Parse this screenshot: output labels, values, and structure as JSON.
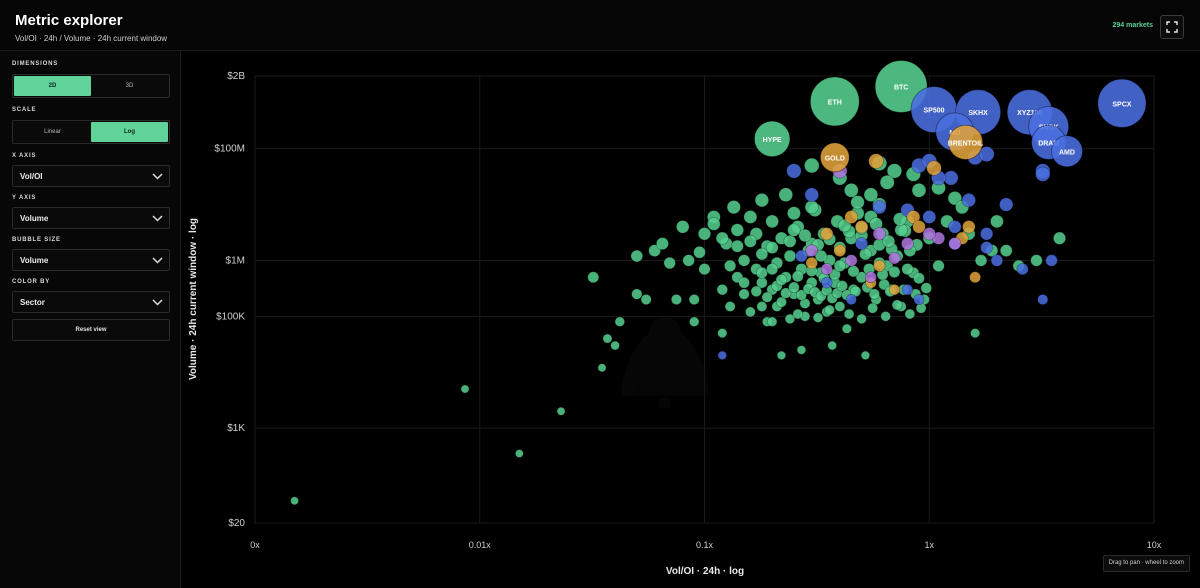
{
  "header": {
    "title": "Metric explorer",
    "subtitle": "Vol/OI · 24h / Volume · 24h current window",
    "market_count": "294 markets",
    "fullscreen_icon": "expand-icon"
  },
  "sidebar": {
    "dimensions": {
      "label": "DIMENSIONS",
      "options": [
        "2D",
        "3D"
      ],
      "selected": "2D"
    },
    "scale": {
      "label": "SCALE",
      "options": [
        "Linear",
        "Log"
      ],
      "selected": "Log"
    },
    "x_axis": {
      "label": "X AXIS",
      "value": "Vol/OI"
    },
    "y_axis": {
      "label": "Y AXIS",
      "value": "Volume"
    },
    "bubble_size": {
      "label": "BUBBLE SIZE",
      "value": "Volume"
    },
    "color_by": {
      "label": "COLOR BY",
      "value": "Sector"
    },
    "reset_label": "Reset view"
  },
  "hint": "Drag to pan · wheel to zoom",
  "colors": {
    "accent": "#5fd39a",
    "crypto": "#56d08f",
    "equity": "#4a6ee0",
    "commodity": "#e0a23a",
    "other": "#b074e0",
    "background": "#000000"
  },
  "chart_data": {
    "type": "scatter",
    "xlabel": "Vol/OI · 24h · log",
    "ylabel": "Volume · 24h current window · log",
    "x_scale": "log",
    "y_scale": "log",
    "xlim": [
      0.001,
      10
    ],
    "ylim": [
      20,
      2000000000
    ],
    "x_ticks": [
      {
        "value": 0.001,
        "label": "0x"
      },
      {
        "value": 0.01,
        "label": "0.01x"
      },
      {
        "value": 0.1,
        "label": "0.1x"
      },
      {
        "value": 1,
        "label": "1x"
      },
      {
        "value": 10,
        "label": "10x"
      }
    ],
    "y_ticks": [
      {
        "value": 20,
        "label": "$20"
      },
      {
        "value": 1000,
        "label": "$1K"
      },
      {
        "value": 100000,
        "label": "$100K"
      },
      {
        "value": 1000000,
        "label": "$1M"
      },
      {
        "value": 100000000,
        "label": "$100M"
      },
      {
        "value": 2000000000,
        "label": "$2B"
      }
    ],
    "grid": true,
    "labeled_points": [
      {
        "label": "BTC",
        "x": 0.75,
        "y": 1300000000,
        "sector": "crypto"
      },
      {
        "label": "ETH",
        "x": 0.38,
        "y": 700000000,
        "sector": "crypto"
      },
      {
        "label": "SP500",
        "x": 1.05,
        "y": 500000000,
        "sector": "equity"
      },
      {
        "label": "HYPE",
        "x": 0.2,
        "y": 150000000,
        "sector": "crypto"
      },
      {
        "label": "GOLD",
        "x": 0.38,
        "y": 70000000,
        "sector": "commodity"
      },
      {
        "label": "SKHX",
        "x": 1.65,
        "y": 450000000,
        "sector": "equity"
      },
      {
        "label": "XYZ100",
        "x": 2.8,
        "y": 450000000,
        "sector": "equity"
      },
      {
        "label": "SNDK",
        "x": 3.4,
        "y": 250000000,
        "sector": "equity"
      },
      {
        "label": "MU",
        "x": 1.3,
        "y": 200000000,
        "sector": "equity"
      },
      {
        "label": "BRENTOIL",
        "x": 1.45,
        "y": 130000000,
        "sector": "commodity"
      },
      {
        "label": "DRAM",
        "x": 3.4,
        "y": 130000000,
        "sector": "equity"
      },
      {
        "label": "AMD",
        "x": 4.1,
        "y": 90000000,
        "sector": "equity"
      },
      {
        "label": "SPCX",
        "x": 7.2,
        "y": 650000000,
        "sector": "equity"
      }
    ],
    "points": [
      [
        0.0015,
        50,
        "c"
      ],
      [
        0.0086,
        5000,
        "c"
      ],
      [
        0.015,
        350,
        "c"
      ],
      [
        0.023,
        2000,
        "c"
      ],
      [
        0.035,
        12000,
        "c"
      ],
      [
        0.037,
        40000,
        "c"
      ],
      [
        0.042,
        80000,
        "c"
      ],
      [
        0.032,
        500000,
        "c"
      ],
      [
        0.04,
        30000,
        "c"
      ],
      [
        0.05,
        250000,
        "c"
      ],
      [
        0.055,
        200000,
        "c"
      ],
      [
        0.06,
        1500000,
        "c"
      ],
      [
        0.065,
        2000000,
        "c"
      ],
      [
        0.07,
        900000,
        "c"
      ],
      [
        0.075,
        200000,
        "c"
      ],
      [
        0.05,
        1200000,
        "c"
      ],
      [
        0.08,
        4000000,
        "c"
      ],
      [
        0.085,
        1000000,
        "c"
      ],
      [
        0.09,
        80000,
        "c"
      ],
      [
        0.09,
        200000,
        "c"
      ],
      [
        0.095,
        1400000,
        "c"
      ],
      [
        0.1,
        3000000,
        "c"
      ],
      [
        0.1,
        700000,
        "c"
      ],
      [
        0.11,
        6000000,
        "c"
      ],
      [
        0.11,
        4500000,
        "c"
      ],
      [
        0.12,
        50000,
        "c"
      ],
      [
        0.12,
        300000,
        "c"
      ],
      [
        0.125,
        2000000,
        "c"
      ],
      [
        0.13,
        800000,
        "c"
      ],
      [
        0.13,
        150000,
        "c"
      ],
      [
        0.135,
        9000000,
        "c"
      ],
      [
        0.14,
        3500000,
        "c"
      ],
      [
        0.14,
        500000,
        "c"
      ],
      [
        0.15,
        1000000,
        "c"
      ],
      [
        0.15,
        250000,
        "c"
      ],
      [
        0.16,
        6000000,
        "c"
      ],
      [
        0.16,
        120000,
        "c"
      ],
      [
        0.17,
        3000000,
        "c"
      ],
      [
        0.17,
        700000,
        "c"
      ],
      [
        0.18,
        400000,
        "c"
      ],
      [
        0.18,
        12000000,
        "c"
      ],
      [
        0.19,
        80000,
        "c"
      ],
      [
        0.19,
        1800000,
        "c"
      ],
      [
        0.2,
        5000000,
        "c"
      ],
      [
        0.2,
        300000,
        "c"
      ],
      [
        0.21,
        150000,
        "c"
      ],
      [
        0.21,
        900000,
        "c"
      ],
      [
        0.22,
        2500000,
        "c"
      ],
      [
        0.22,
        20000,
        "c"
      ],
      [
        0.23,
        500000,
        "c"
      ],
      [
        0.23,
        15000000,
        "c"
      ],
      [
        0.24,
        1200000,
        "c"
      ],
      [
        0.25,
        250000,
        "c"
      ],
      [
        0.25,
        7000000,
        "c"
      ],
      [
        0.26,
        4000000,
        "c"
      ],
      [
        0.27,
        700000,
        "c"
      ],
      [
        0.27,
        25000,
        "c"
      ],
      [
        0.28,
        100000,
        "c"
      ],
      [
        0.29,
        1500000,
        "c"
      ],
      [
        0.3,
        400000,
        "c"
      ],
      [
        0.3,
        2000000,
        "c"
      ],
      [
        0.31,
        8000000,
        "c"
      ],
      [
        0.32,
        200000,
        "c"
      ],
      [
        0.33,
        600000,
        "c"
      ],
      [
        0.34,
        3000000,
        "c"
      ],
      [
        0.35,
        120000,
        "c"
      ],
      [
        0.36,
        1000000,
        "c"
      ],
      [
        0.37,
        30000,
        "c"
      ],
      [
        0.38,
        400000,
        "c"
      ],
      [
        0.39,
        5000000,
        "c"
      ],
      [
        0.4,
        150000,
        "c"
      ],
      [
        0.42,
        900000,
        "c"
      ],
      [
        0.43,
        60000,
        "c"
      ],
      [
        0.45,
        2500000,
        "c"
      ],
      [
        0.46,
        300000,
        "c"
      ],
      [
        0.48,
        7000000,
        "c"
      ],
      [
        0.5,
        500000,
        "c"
      ],
      [
        0.52,
        20000,
        "c"
      ],
      [
        0.55,
        1500000,
        "c"
      ],
      [
        0.58,
        200000,
        "c"
      ],
      [
        0.6,
        10000000,
        "c"
      ],
      [
        0.62,
        3000000,
        "c"
      ],
      [
        0.65,
        800000,
        "c"
      ],
      [
        0.68,
        300000,
        "c"
      ],
      [
        0.7,
        40000000,
        "c"
      ],
      [
        0.72,
        1200000,
        "c"
      ],
      [
        0.75,
        150000,
        "c"
      ],
      [
        0.8,
        5000000,
        "c"
      ],
      [
        0.85,
        600000,
        "c"
      ],
      [
        0.9,
        18000000,
        "c"
      ],
      [
        0.95,
        200000,
        "c"
      ],
      [
        1.0,
        2500000,
        "c"
      ],
      [
        1.1,
        800000,
        "c"
      ],
      [
        1.2,
        5000000,
        "c"
      ],
      [
        1.3,
        13000000,
        "c"
      ],
      [
        1.5,
        3000000,
        "c"
      ],
      [
        1.7,
        1000000,
        "c"
      ],
      [
        2.0,
        5000000,
        "c"
      ],
      [
        2.2,
        1500000,
        "c"
      ],
      [
        2.5,
        800000,
        "c"
      ],
      [
        3.0,
        1000000,
        "c"
      ],
      [
        3.8,
        2500000,
        "c"
      ],
      [
        1.6,
        50000,
        "c"
      ],
      [
        1.9,
        1500000,
        "c"
      ],
      [
        0.2,
        80000,
        "c"
      ],
      [
        0.18,
        150000,
        "c"
      ],
      [
        0.22,
        180000,
        "c"
      ],
      [
        0.24,
        90000,
        "c"
      ],
      [
        0.26,
        110000,
        "c"
      ],
      [
        0.28,
        170000,
        "c"
      ],
      [
        0.32,
        95000,
        "c"
      ],
      [
        0.36,
        130000,
        "c"
      ],
      [
        0.44,
        110000,
        "c"
      ],
      [
        0.5,
        90000,
        "c"
      ],
      [
        0.56,
        140000,
        "c"
      ],
      [
        0.64,
        100000,
        "c"
      ],
      [
        0.72,
        160000,
        "c"
      ],
      [
        0.82,
        110000,
        "c"
      ],
      [
        0.92,
        140000,
        "c"
      ],
      [
        0.15,
        400000,
        "c"
      ],
      [
        0.17,
        280000,
        "c"
      ],
      [
        0.19,
        220000,
        "c"
      ],
      [
        0.21,
        350000,
        "c"
      ],
      [
        0.23,
        260000,
        "c"
      ],
      [
        0.25,
        330000,
        "c"
      ],
      [
        0.27,
        240000,
        "c"
      ],
      [
        0.29,
        310000,
        "c"
      ],
      [
        0.31,
        270000,
        "c"
      ],
      [
        0.33,
        230000,
        "c"
      ],
      [
        0.35,
        290000,
        "c"
      ],
      [
        0.37,
        210000,
        "c"
      ],
      [
        0.39,
        260000,
        "c"
      ],
      [
        0.41,
        350000,
        "c"
      ],
      [
        0.43,
        240000,
        "c"
      ],
      [
        0.47,
        280000,
        "c"
      ],
      [
        0.53,
        330000,
        "c"
      ],
      [
        0.57,
        250000,
        "c"
      ],
      [
        0.63,
        370000,
        "c"
      ],
      [
        0.67,
        280000,
        "c"
      ],
      [
        0.77,
        300000,
        "c"
      ],
      [
        0.87,
        250000,
        "c"
      ],
      [
        0.97,
        320000,
        "c"
      ],
      [
        0.12,
        2500000,
        "c"
      ],
      [
        0.14,
        1800000,
        "c"
      ],
      [
        0.16,
        2200000,
        "c"
      ],
      [
        0.18,
        1300000,
        "c"
      ],
      [
        0.2,
        1700000,
        "c"
      ],
      [
        0.24,
        2200000,
        "c"
      ],
      [
        0.28,
        2800000,
        "c"
      ],
      [
        0.32,
        1900000,
        "c"
      ],
      [
        0.36,
        2400000,
        "c"
      ],
      [
        0.4,
        1700000,
        "c"
      ],
      [
        0.44,
        3300000,
        "c"
      ],
      [
        0.52,
        1300000,
        "c"
      ],
      [
        0.6,
        1900000,
        "c"
      ],
      [
        0.68,
        1600000,
        "c"
      ],
      [
        0.78,
        3400000,
        "c"
      ],
      [
        0.88,
        1900000,
        "c"
      ],
      [
        0.18,
        600000,
        "c"
      ],
      [
        0.2,
        700000,
        "c"
      ],
      [
        0.22,
        450000,
        "c"
      ],
      [
        0.26,
        520000,
        "c"
      ],
      [
        0.3,
        650000,
        "c"
      ],
      [
        0.34,
        480000,
        "c"
      ],
      [
        0.38,
        560000,
        "c"
      ],
      [
        0.46,
        640000,
        "c"
      ],
      [
        0.54,
        700000,
        "c"
      ],
      [
        0.62,
        560000,
        "c"
      ],
      [
        0.7,
        620000,
        "c"
      ],
      [
        0.8,
        700000,
        "c"
      ],
      [
        0.9,
        480000,
        "c"
      ],
      [
        0.45,
        18000000,
        "c"
      ],
      [
        0.55,
        15000000,
        "c"
      ],
      [
        0.65,
        25000000,
        "c"
      ],
      [
        0.4,
        30000000,
        "c"
      ],
      [
        0.3,
        9000000,
        "c"
      ],
      [
        0.48,
        11000000,
        "c"
      ],
      [
        0.85,
        35000000,
        "c"
      ],
      [
        1.1,
        20000000,
        "c"
      ],
      [
        1.4,
        9000000,
        "c"
      ],
      [
        0.55,
        6000000,
        "c"
      ],
      [
        0.75,
        3500000,
        "c"
      ],
      [
        0.3,
        50000000,
        "c"
      ],
      [
        0.6,
        55000000,
        "c"
      ],
      [
        0.25,
        3500000,
        "c"
      ],
      [
        0.33,
        1200000,
        "c"
      ],
      [
        0.42,
        4200000,
        "c"
      ],
      [
        0.5,
        2800000,
        "c"
      ],
      [
        0.58,
        4500000,
        "c"
      ],
      [
        0.66,
        2200000,
        "c"
      ],
      [
        0.74,
        5500000,
        "c"
      ],
      [
        0.82,
        1500000,
        "c"
      ],
      [
        0.4,
        800000,
        "c"
      ],
      [
        0.6,
        900000,
        "c"
      ],
      [
        0.5,
        3800000,
        "c"
      ],
      [
        0.12,
        20000,
        "e"
      ],
      [
        1.0,
        6000000,
        "e"
      ],
      [
        1.3,
        4000000,
        "e"
      ],
      [
        1.8,
        3000000,
        "e"
      ],
      [
        2.0,
        1000000,
        "e"
      ],
      [
        2.6,
        700000,
        "e"
      ],
      [
        3.2,
        200000,
        "e"
      ],
      [
        3.5,
        1000000,
        "e"
      ],
      [
        1.25,
        30000000,
        "e"
      ],
      [
        0.25,
        40000000,
        "e"
      ],
      [
        0.3,
        15000000,
        "e"
      ],
      [
        0.5,
        2000000,
        "e"
      ],
      [
        0.9,
        50000000,
        "e"
      ],
      [
        1.0,
        60000000,
        "e"
      ],
      [
        1.1,
        30000000,
        "e"
      ],
      [
        1.5,
        12000000,
        "e"
      ],
      [
        2.2,
        10000000,
        "e"
      ],
      [
        1.3,
        2000000,
        "e"
      ],
      [
        1.8,
        1700000,
        "e"
      ],
      [
        0.8,
        300000,
        "e"
      ],
      [
        0.35,
        400000,
        "e"
      ],
      [
        0.45,
        200000,
        "e"
      ],
      [
        0.9,
        200000,
        "e"
      ],
      [
        0.6,
        9000000,
        "e"
      ],
      [
        0.8,
        8000000,
        "e"
      ],
      [
        1.6,
        70000000,
        "e"
      ],
      [
        1.8,
        80000000,
        "e"
      ],
      [
        3.2,
        40000000,
        "e"
      ],
      [
        3.2,
        35000000,
        "e"
      ],
      [
        0.27,
        1200000,
        "e"
      ],
      [
        0.58,
        60000000,
        "m"
      ],
      [
        1.05,
        45000000,
        "m"
      ],
      [
        1.5,
        4000000,
        "m"
      ],
      [
        0.85,
        6000000,
        "m"
      ],
      [
        0.55,
        400000,
        "m"
      ],
      [
        0.3,
        900000,
        "m"
      ],
      [
        0.35,
        3000000,
        "m"
      ],
      [
        1.6,
        500000,
        "m"
      ],
      [
        1.4,
        2500000,
        "m"
      ],
      [
        0.5,
        4000000,
        "m"
      ],
      [
        0.6,
        800000,
        "m"
      ],
      [
        0.9,
        4000000,
        "m"
      ],
      [
        0.45,
        6000000,
        "m"
      ],
      [
        0.7,
        300000,
        "m"
      ],
      [
        0.4,
        1500000,
        "m"
      ],
      [
        0.4,
        40000000,
        "o"
      ],
      [
        0.3,
        1500000,
        "o"
      ],
      [
        1.1,
        2500000,
        "o"
      ],
      [
        0.7,
        1100000,
        "o"
      ],
      [
        0.35,
        700000,
        "o"
      ],
      [
        1.3,
        2000000,
        "o"
      ],
      [
        0.55,
        500000,
        "o"
      ],
      [
        0.8,
        2000000,
        "o"
      ],
      [
        0.45,
        1000000,
        "o"
      ],
      [
        1.0,
        3000000,
        "o"
      ],
      [
        0.6,
        3000000,
        "o"
      ]
    ]
  }
}
